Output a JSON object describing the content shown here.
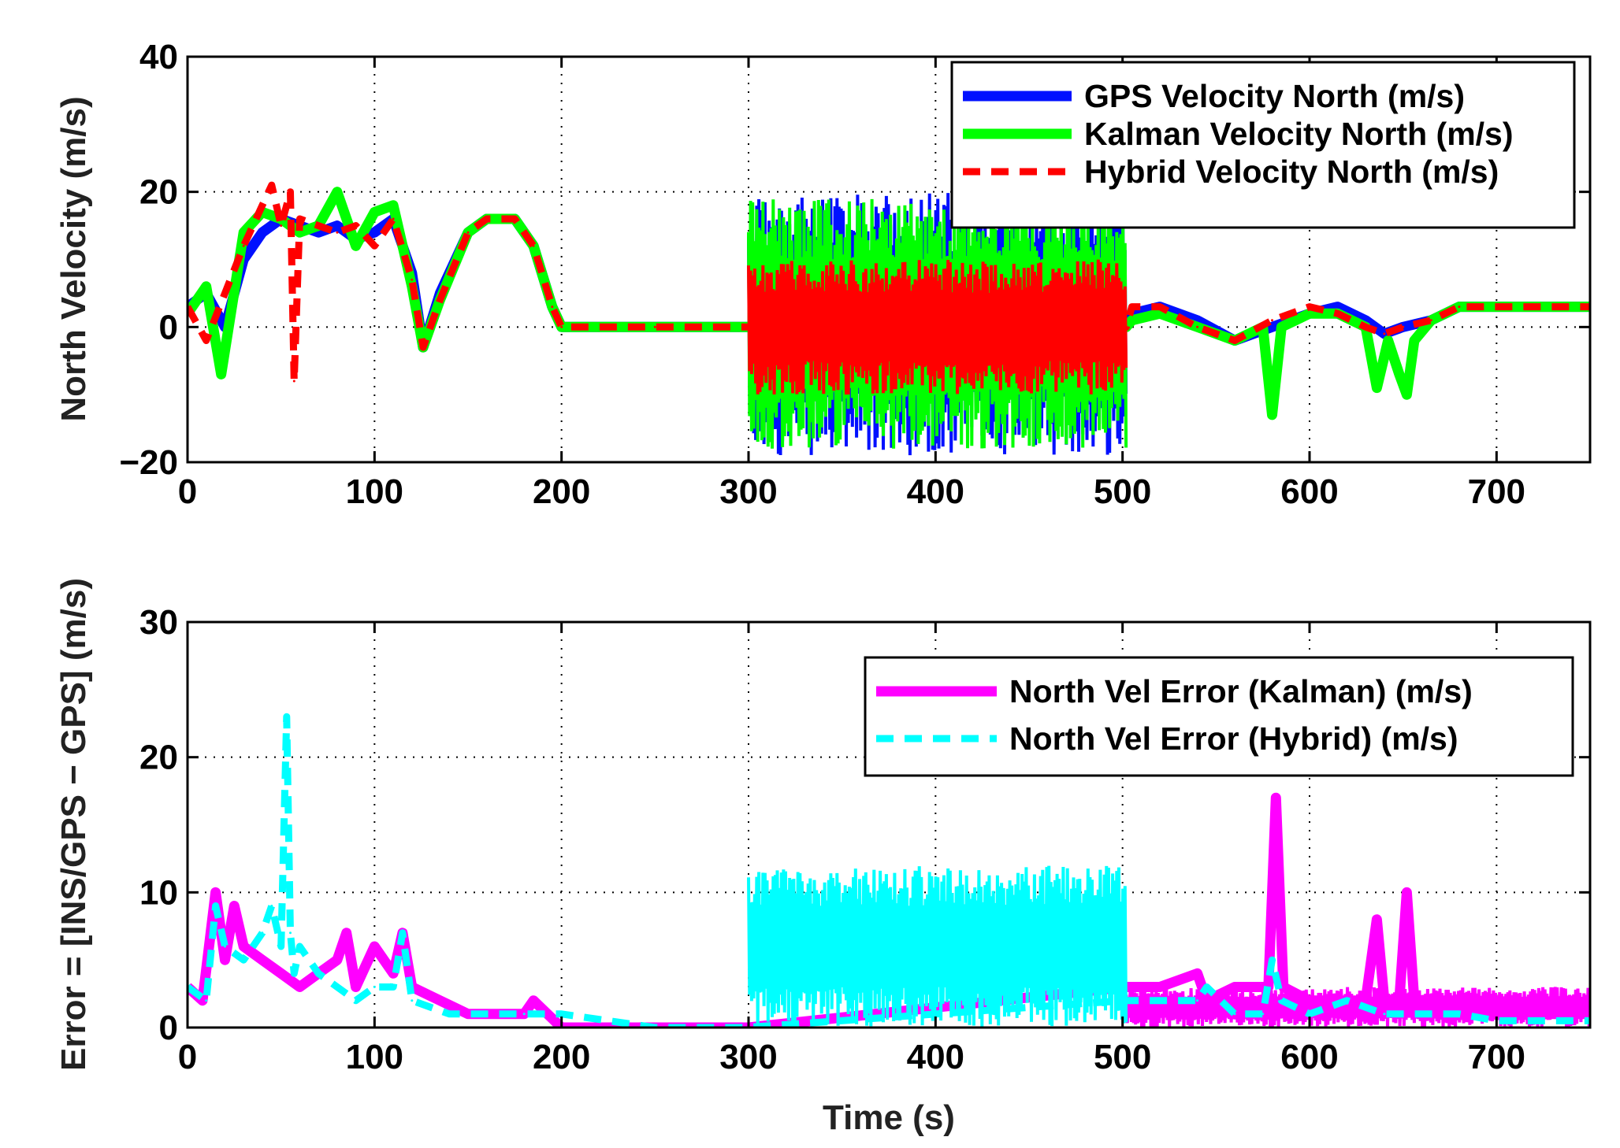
{
  "chart_data": [
    {
      "type": "line",
      "xlabel": "",
      "ylabel": "North Velocity (m/s)",
      "xlim": [
        0,
        750
      ],
      "ylim": [
        -20,
        40
      ],
      "xticks": [
        0,
        100,
        200,
        300,
        400,
        500,
        600,
        700
      ],
      "yticks": [
        -20,
        0,
        20,
        40
      ],
      "ytick_labels": [
        "−20",
        "0",
        "20",
        "40"
      ],
      "grid": true,
      "legend_position": "top-right",
      "series": [
        {
          "name": "GPS Velocity North (m/s)",
          "color": "#0010ff",
          "style": "solid",
          "x": [
            0,
            10,
            20,
            30,
            40,
            50,
            60,
            70,
            80,
            90,
            100,
            110,
            120,
            126,
            135,
            150,
            160,
            175,
            185,
            195,
            200,
            250,
            298,
            302,
            320,
            340,
            360,
            380,
            400,
            420,
            440,
            460,
            480,
            500,
            505,
            520,
            540,
            560,
            580,
            600,
            615,
            630,
            640,
            650,
            665,
            680,
            700,
            750
          ],
          "y": [
            3,
            5,
            0,
            10,
            14,
            16,
            15,
            14,
            15,
            13,
            14,
            16,
            8,
            -3,
            5,
            14,
            16,
            16,
            12,
            3,
            0,
            0,
            0,
            0,
            0,
            0,
            0,
            0,
            0,
            0,
            0,
            0,
            0,
            0,
            2,
            3,
            1,
            -2,
            0,
            2,
            3,
            1,
            -1,
            0,
            1,
            3,
            3,
            3
          ],
          "noise_band": {
            "from": 300,
            "to": 502,
            "min": -19,
            "max": 20
          }
        },
        {
          "name": "Kalman Velocity North (m/s)",
          "color": "#00ff00",
          "style": "solid",
          "x": [
            0,
            10,
            18,
            30,
            40,
            50,
            60,
            70,
            80,
            90,
            100,
            110,
            120,
            126,
            135,
            150,
            160,
            175,
            185,
            195,
            200,
            250,
            298,
            502,
            505,
            520,
            540,
            560,
            575,
            580,
            585,
            600,
            615,
            630,
            636,
            642,
            648,
            652,
            656,
            665,
            680,
            700,
            750
          ],
          "y": [
            2,
            6,
            -7,
            14,
            17,
            16,
            14,
            15,
            20,
            12,
            17,
            18,
            6,
            -3,
            4,
            14,
            16,
            16,
            12,
            3,
            0,
            0,
            0,
            0,
            1,
            2,
            0,
            -2,
            0,
            -13,
            0,
            2,
            2,
            0,
            -9,
            -2,
            -7,
            -10,
            -2,
            1,
            3,
            3,
            3
          ],
          "noise_band": {
            "from": 300,
            "to": 502,
            "min": -18,
            "max": 19
          }
        },
        {
          "name": "Hybrid Velocity North (m/s)",
          "color": "#ff0000",
          "style": "dashed",
          "x": [
            0,
            10,
            20,
            30,
            40,
            45,
            50,
            55,
            57,
            60,
            70,
            80,
            90,
            100,
            110,
            120,
            126,
            135,
            150,
            160,
            175,
            185,
            195,
            200,
            250,
            298,
            502,
            505,
            520,
            540,
            560,
            580,
            600,
            615,
            630,
            640,
            650,
            665,
            680,
            700,
            750
          ],
          "y": [
            3,
            -2,
            5,
            12,
            18,
            21,
            15,
            20,
            -8,
            16,
            15,
            14,
            15,
            12,
            16,
            7,
            -3,
            4,
            14,
            16,
            16,
            12,
            3,
            0,
            0,
            0,
            0,
            3,
            3,
            0,
            -2,
            1,
            3,
            2,
            0,
            -1,
            0,
            1,
            3,
            3,
            3
          ],
          "noise_band": {
            "from": 300,
            "to": 502,
            "min": -10,
            "max": 10
          }
        }
      ]
    },
    {
      "type": "line",
      "xlabel": "Time (s)",
      "ylabel": "Error = [INS/GPS − GPS] (m/s)",
      "xlim": [
        0,
        750
      ],
      "ylim": [
        0,
        30
      ],
      "xticks": [
        0,
        100,
        200,
        300,
        400,
        500,
        600,
        700
      ],
      "yticks": [
        0,
        10,
        20,
        30
      ],
      "ytick_labels": [
        "0",
        "10",
        "20",
        "30"
      ],
      "grid": true,
      "legend_position": "top-right",
      "series": [
        {
          "name": "North Vel Error (Kalman) (m/s)",
          "color": "#ff00ff",
          "style": "solid",
          "x": [
            0,
            8,
            15,
            20,
            25,
            30,
            40,
            50,
            60,
            70,
            80,
            85,
            90,
            100,
            110,
            115,
            120,
            135,
            150,
            160,
            180,
            185,
            200,
            250,
            300,
            502,
            520,
            540,
            545,
            560,
            578,
            582,
            586,
            600,
            615,
            630,
            636,
            640,
            648,
            652,
            656,
            670,
            690,
            700,
            750
          ],
          "y": [
            3,
            2,
            10,
            5,
            9,
            6,
            5,
            4,
            3,
            4,
            5,
            7,
            3,
            6,
            4,
            7,
            3,
            2,
            1,
            1,
            1,
            2,
            0,
            0,
            0,
            3,
            3,
            4,
            2,
            3,
            3,
            17,
            3,
            2,
            2,
            2,
            8,
            2,
            2,
            10,
            2,
            2,
            2,
            1,
            1
          ],
          "noise_band": {
            "from": 502,
            "to": 750,
            "min": 0,
            "max": 3
          }
        },
        {
          "name": "North Vel Error (Hybrid) (m/s)",
          "color": "#00ffff",
          "style": "dashed",
          "x": [
            0,
            10,
            15,
            20,
            30,
            40,
            45,
            50,
            53,
            55,
            57,
            60,
            70,
            80,
            90,
            100,
            110,
            115,
            120,
            140,
            160,
            180,
            200,
            250,
            298,
            502,
            520,
            540,
            545,
            560,
            575,
            580,
            585,
            600,
            620,
            640,
            660,
            680,
            700,
            750
          ],
          "y": [
            3,
            2,
            9,
            6,
            5,
            7,
            9,
            6,
            23,
            7,
            4,
            6,
            4,
            3,
            2,
            3,
            3,
            7,
            2,
            1,
            1,
            1,
            1,
            0,
            0,
            2,
            2,
            2,
            3,
            1,
            1,
            5,
            2,
            1,
            2,
            1,
            1,
            1,
            0.5,
            0.5
          ],
          "noise_band": {
            "from": 300,
            "to": 502,
            "min": 0,
            "max": 12
          }
        }
      ]
    }
  ]
}
